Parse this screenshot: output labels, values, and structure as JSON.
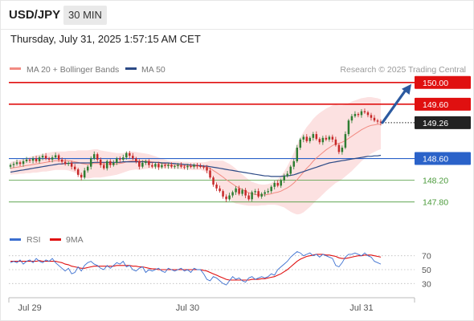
{
  "header": {
    "symbol": "USD/JPY",
    "timeframe": "30 MIN"
  },
  "datetime": "Thursday, July 31, 2025 1:57:15 AM CET",
  "legend": {
    "ma20": "MA 20 + Bollinger Bands",
    "ma50": "MA 50",
    "source": "Research © 2025 Trading Central"
  },
  "colors": {
    "resistance": "#e01010",
    "support": "#2a62c9",
    "minor_support": "#4a9a3a",
    "current": "#222222",
    "candle_up": "#2e7d32",
    "candle_down": "#c62828",
    "ma20": "#f28b82",
    "ma50": "#2c4a86",
    "bollinger": "#f9c9c9",
    "rsi": "#3b6fd0",
    "rsi_ma": "#e01010",
    "arrow": "#2c5aa0"
  },
  "chart_data": [
    {
      "type": "candlestick",
      "title": "USD/JPY 30 MIN",
      "ylim": [
        147.5,
        150.1
      ],
      "x_ticks": [
        "Jul 29",
        "Jul 30",
        "Jul 31"
      ],
      "levels": [
        {
          "label": "150.00",
          "value": 150.0,
          "kind": "resistance"
        },
        {
          "label": "149.60",
          "value": 149.6,
          "kind": "resistance"
        },
        {
          "label": "149.26",
          "value": 149.26,
          "kind": "current"
        },
        {
          "label": "148.60",
          "value": 148.6,
          "kind": "support"
        },
        {
          "label": "148.20",
          "value": 148.2,
          "kind": "minor_support"
        },
        {
          "label": "147.80",
          "value": 147.8,
          "kind": "minor_support"
        }
      ],
      "close": [
        148.48,
        148.5,
        148.53,
        148.5,
        148.55,
        148.58,
        148.56,
        148.6,
        148.55,
        148.62,
        148.65,
        148.6,
        148.58,
        148.62,
        148.66,
        148.58,
        148.54,
        148.5,
        148.52,
        148.45,
        148.4,
        148.3,
        148.25,
        148.38,
        148.45,
        148.6,
        148.68,
        148.58,
        148.48,
        148.42,
        148.55,
        148.48,
        148.52,
        148.6,
        148.58,
        148.62,
        148.7,
        148.65,
        148.6,
        148.55,
        148.45,
        148.52,
        148.55,
        148.48,
        148.45,
        148.5,
        148.44,
        148.48,
        148.46,
        148.48,
        148.45,
        148.46,
        148.48,
        148.45,
        148.44,
        148.46,
        148.45,
        148.48,
        148.46,
        148.45,
        148.44,
        148.38,
        148.25,
        148.12,
        148.05,
        148.0,
        147.9,
        147.85,
        147.92,
        147.98,
        148.05,
        147.95,
        148.02,
        147.92,
        147.85,
        147.98,
        148.0,
        147.9,
        147.95,
        147.98,
        148.0,
        148.08,
        148.15,
        148.1,
        148.2,
        148.28,
        148.32,
        148.45,
        148.55,
        148.8,
        148.95,
        149.0,
        148.92,
        148.98,
        149.05,
        148.96,
        148.9,
        148.98,
        148.95,
        149.0,
        148.95,
        148.85,
        148.72,
        148.8,
        149.05,
        149.3,
        149.38,
        149.42,
        149.4,
        149.47,
        149.45,
        149.4,
        149.35,
        149.3,
        149.28,
        149.26
      ],
      "ma20": [
        148.42,
        148.43,
        148.44,
        148.45,
        148.46,
        148.47,
        148.48,
        148.49,
        148.5,
        148.51,
        148.52,
        148.53,
        148.54,
        148.55,
        148.56,
        148.56,
        148.56,
        148.56,
        148.56,
        148.55,
        148.54,
        148.53,
        148.51,
        148.5,
        148.49,
        148.5,
        148.51,
        148.51,
        148.5,
        148.5,
        148.5,
        148.5,
        148.5,
        148.5,
        148.51,
        148.52,
        148.54,
        148.55,
        148.56,
        148.56,
        148.55,
        148.55,
        148.55,
        148.55,
        148.54,
        148.53,
        148.52,
        148.51,
        148.5,
        148.49,
        148.48,
        148.48,
        148.48,
        148.47,
        148.47,
        148.47,
        148.46,
        148.46,
        148.46,
        148.46,
        148.45,
        148.44,
        148.42,
        148.38,
        148.34,
        148.3,
        148.26,
        148.21,
        148.17,
        148.13,
        148.09,
        148.06,
        148.03,
        148.0,
        147.97,
        147.95,
        147.94,
        147.93,
        147.93,
        147.93,
        147.94,
        147.95,
        147.97,
        147.98,
        148.0,
        148.03,
        148.06,
        148.1,
        148.15,
        148.21,
        148.28,
        148.35,
        148.42,
        148.48,
        148.55,
        148.61,
        148.66,
        148.71,
        148.76,
        148.8,
        148.84,
        148.87,
        148.88,
        148.9,
        148.93,
        148.97,
        149.01,
        149.05,
        149.09,
        149.13,
        149.16,
        149.19,
        149.21,
        149.22,
        149.23,
        149.23
      ],
      "ma50": [
        148.35,
        148.36,
        148.37,
        148.38,
        148.39,
        148.4,
        148.41,
        148.42,
        148.43,
        148.44,
        148.45,
        148.46,
        148.47,
        148.48,
        148.49,
        148.5,
        148.5,
        148.51,
        148.51,
        148.52,
        148.52,
        148.52,
        148.52,
        148.52,
        148.52,
        148.52,
        148.53,
        148.53,
        148.53,
        148.53,
        148.53,
        148.53,
        148.53,
        148.53,
        148.53,
        148.54,
        148.54,
        148.54,
        148.54,
        148.54,
        148.54,
        148.54,
        148.54,
        148.53,
        148.53,
        148.53,
        148.53,
        148.52,
        148.52,
        148.52,
        148.51,
        148.51,
        148.5,
        148.5,
        148.49,
        148.49,
        148.48,
        148.48,
        148.47,
        148.47,
        148.46,
        148.46,
        148.45,
        148.44,
        148.43,
        148.42,
        148.41,
        148.4,
        148.39,
        148.38,
        148.37,
        148.36,
        148.35,
        148.34,
        148.33,
        148.32,
        148.31,
        148.3,
        148.29,
        148.28,
        148.28,
        148.27,
        148.27,
        148.27,
        148.27,
        148.28,
        148.28,
        148.29,
        148.3,
        148.32,
        148.34,
        148.36,
        148.38,
        148.4,
        148.42,
        148.44,
        148.46,
        148.48,
        148.5,
        148.52,
        148.53,
        148.54,
        148.55,
        148.56,
        148.57,
        148.58,
        148.59,
        148.6,
        148.61,
        148.62,
        148.63,
        148.64,
        148.64,
        148.65,
        148.65,
        148.66
      ],
      "bollinger_width": [
        0.12,
        0.12,
        0.13,
        0.13,
        0.14,
        0.14,
        0.15,
        0.15,
        0.16,
        0.16,
        0.16,
        0.17,
        0.17,
        0.17,
        0.17,
        0.17,
        0.17,
        0.17,
        0.18,
        0.19,
        0.2,
        0.22,
        0.24,
        0.25,
        0.26,
        0.26,
        0.26,
        0.26,
        0.25,
        0.24,
        0.23,
        0.22,
        0.21,
        0.2,
        0.19,
        0.18,
        0.18,
        0.17,
        0.17,
        0.16,
        0.16,
        0.15,
        0.14,
        0.13,
        0.12,
        0.11,
        0.1,
        0.09,
        0.08,
        0.07,
        0.07,
        0.07,
        0.07,
        0.07,
        0.07,
        0.07,
        0.07,
        0.07,
        0.07,
        0.07,
        0.08,
        0.1,
        0.14,
        0.18,
        0.22,
        0.26,
        0.3,
        0.32,
        0.33,
        0.33,
        0.32,
        0.3,
        0.28,
        0.26,
        0.24,
        0.22,
        0.21,
        0.2,
        0.19,
        0.19,
        0.19,
        0.2,
        0.22,
        0.24,
        0.28,
        0.33,
        0.4,
        0.48,
        0.56,
        0.64,
        0.7,
        0.74,
        0.76,
        0.77,
        0.78,
        0.78,
        0.78,
        0.77,
        0.76,
        0.75,
        0.74,
        0.72,
        0.7,
        0.68,
        0.66,
        0.65,
        0.64,
        0.62,
        0.6,
        0.58,
        0.56,
        0.54,
        0.52,
        0.5,
        0.48,
        0.46
      ],
      "forecast_arrow": {
        "from": 149.26,
        "to": 150.0
      }
    },
    {
      "type": "line",
      "title": "RSI",
      "series": [
        {
          "name": "RSI",
          "values": [
            60,
            62,
            60,
            64,
            58,
            62,
            64,
            60,
            66,
            62,
            60,
            64,
            62,
            66,
            60,
            56,
            52,
            48,
            52,
            44,
            46,
            54,
            48,
            56,
            60,
            62,
            58,
            56,
            52,
            50,
            56,
            52,
            56,
            60,
            58,
            62,
            54,
            56,
            50,
            48,
            52,
            54,
            46,
            50,
            48,
            50,
            52,
            48,
            46,
            52,
            50,
            48,
            50,
            52,
            48,
            50,
            46,
            52,
            50,
            50,
            44,
            36,
            34,
            40,
            38,
            34,
            30,
            28,
            34,
            40,
            36,
            38,
            34,
            32,
            38,
            40,
            36,
            38,
            40,
            38,
            40,
            44,
            42,
            50,
            54,
            58,
            62,
            68,
            72,
            76,
            74,
            70,
            72,
            74,
            70,
            72,
            68,
            72,
            70,
            68,
            66,
            56,
            54,
            60,
            68,
            72,
            72,
            74,
            72,
            70,
            74,
            70,
            68,
            62,
            60,
            58
          ]
        },
        {
          "name": "9MA",
          "values": [
            62,
            62,
            62,
            62,
            62,
            62,
            62,
            62,
            62,
            63,
            62,
            62,
            62,
            62,
            62,
            61,
            60,
            58,
            57,
            55,
            54,
            53,
            52,
            52,
            53,
            54,
            55,
            55,
            55,
            55,
            55,
            55,
            55,
            56,
            56,
            56,
            56,
            56,
            55,
            55,
            54,
            54,
            53,
            52,
            51,
            51,
            50,
            50,
            50,
            50,
            50,
            50,
            50,
            50,
            50,
            50,
            50,
            50,
            50,
            50,
            49,
            48,
            46,
            44,
            42,
            40,
            38,
            36,
            35,
            35,
            35,
            35,
            35,
            35,
            35,
            36,
            36,
            36,
            37,
            37,
            38,
            39,
            40,
            42,
            44,
            47,
            50,
            54,
            58,
            62,
            65,
            67,
            69,
            70,
            71,
            72,
            72,
            72,
            71,
            71,
            70,
            69,
            67,
            66,
            66,
            67,
            68,
            69,
            70,
            70,
            71,
            71,
            71,
            70,
            69,
            68
          ]
        }
      ],
      "ylim": [
        20,
        80
      ],
      "y_ticks": [
        "70",
        "50",
        "30"
      ],
      "levels": [
        70,
        50,
        30
      ]
    }
  ]
}
